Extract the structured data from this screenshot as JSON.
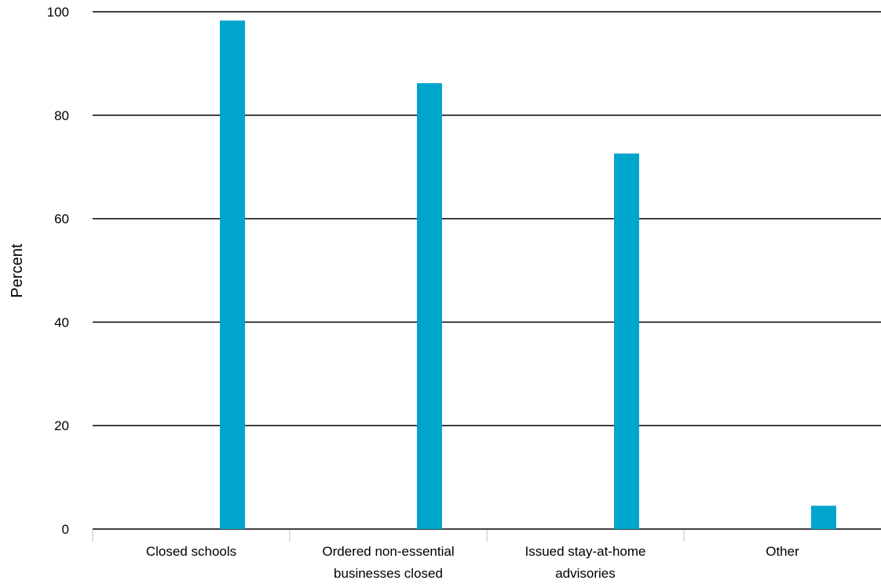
{
  "chart_data": {
    "type": "bar",
    "categories": [
      [
        "Closed schools"
      ],
      [
        "Ordered non-essential",
        "businesses closed"
      ],
      [
        "Issued stay-at-home",
        "advisories"
      ],
      [
        "Other"
      ]
    ],
    "values": [
      98.3,
      86.2,
      72.6,
      4.5
    ],
    "ylabel": "Percent",
    "xlabel": "",
    "ylim": [
      0,
      100
    ],
    "yticks": [
      0,
      20,
      40,
      60,
      80,
      100
    ],
    "grid": true,
    "colors": {
      "bar": "#00a5cc",
      "grid": "#000000",
      "separator": "#c8d7e6"
    }
  }
}
